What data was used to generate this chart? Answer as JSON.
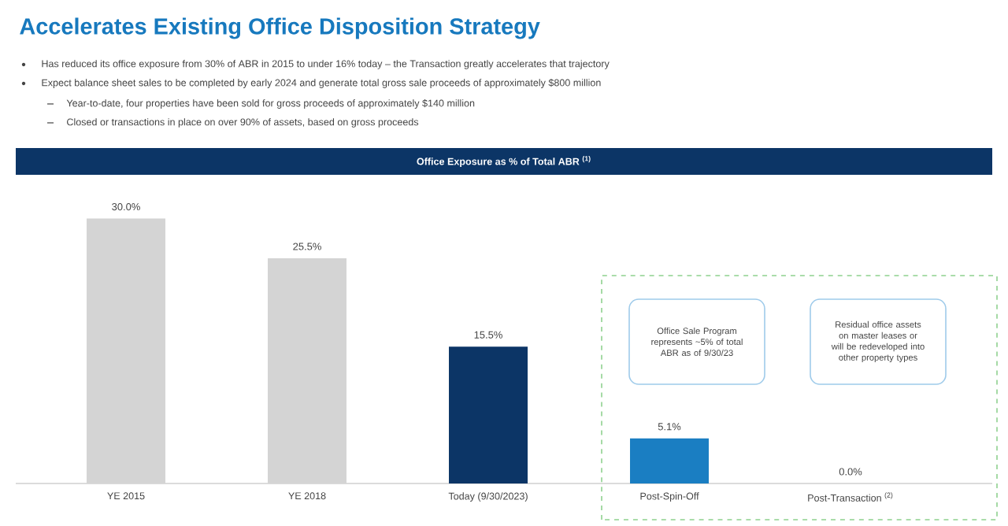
{
  "chart_data": {
    "type": "bar",
    "title": "Accelerates Existing Office Disposition Strategy",
    "subtitle": "Office Exposure as % of Total ABR $^{(1)}$",
    "categories": [
      "YE 2015",
      "YE 2018",
      "Today (9/30/2023)",
      "Post-Spin-Off",
      "Post-Transaction $^{(2)}$"
    ],
    "values": [
      30.0,
      25.5,
      15.5,
      5.1,
      0.0
    ],
    "colors": [
      "#d4d4d4",
      "#d4d4d4",
      "#0c3566",
      "#1a7ec2",
      "#1a7ec2"
    ],
    "value_labels": [
      "30.0%",
      "25.5%",
      "15.5%",
      "5.1%",
      "0.0%"
    ],
    "annotations": [
      "Has reduced its office exposure from 30% of ABR in 2015 to under 16% today – the Transaction greatly accelerates that trajectory",
      "Expect balance sheet sales to be completed by early 2024 and generate total gross sale proceeds of approximately $800 million",
      "Year-to-date, four properties have been sold for gross proceeds of approximately $140 million",
      "Closed or transactions in place on over 90% of assets, based on gross proceeds",
      "Office Sale Program represents ~5% of total ABR as of 9/30/23",
      "Residual office assets on master leases or will be redeveloped into other property types"
    ]
  }
}
